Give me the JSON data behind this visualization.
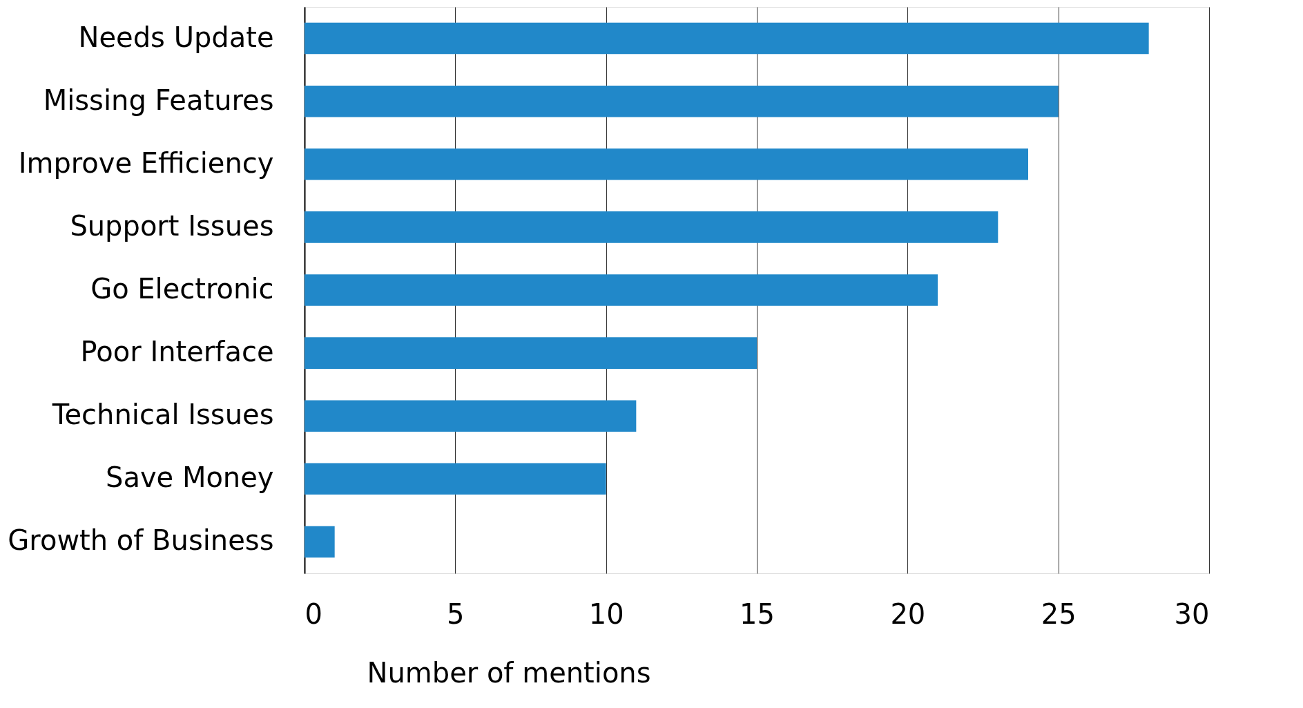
{
  "chart_data": {
    "type": "bar",
    "orientation": "horizontal",
    "xlabel": "Number of mentions",
    "categories": [
      "Needs Update",
      "Missing Features",
      "Improve Efficiency",
      "Support Issues",
      "Go Electronic",
      "Poor Interface",
      "Technical Issues",
      "Save Money",
      "Growth of Business"
    ],
    "values": [
      28,
      25,
      24,
      23,
      21,
      15,
      11,
      10,
      1
    ],
    "color": "#2188c9",
    "xlim": [
      0,
      30
    ],
    "xticks": [
      0,
      5,
      10,
      15,
      20,
      25,
      30
    ],
    "grid": "x"
  }
}
